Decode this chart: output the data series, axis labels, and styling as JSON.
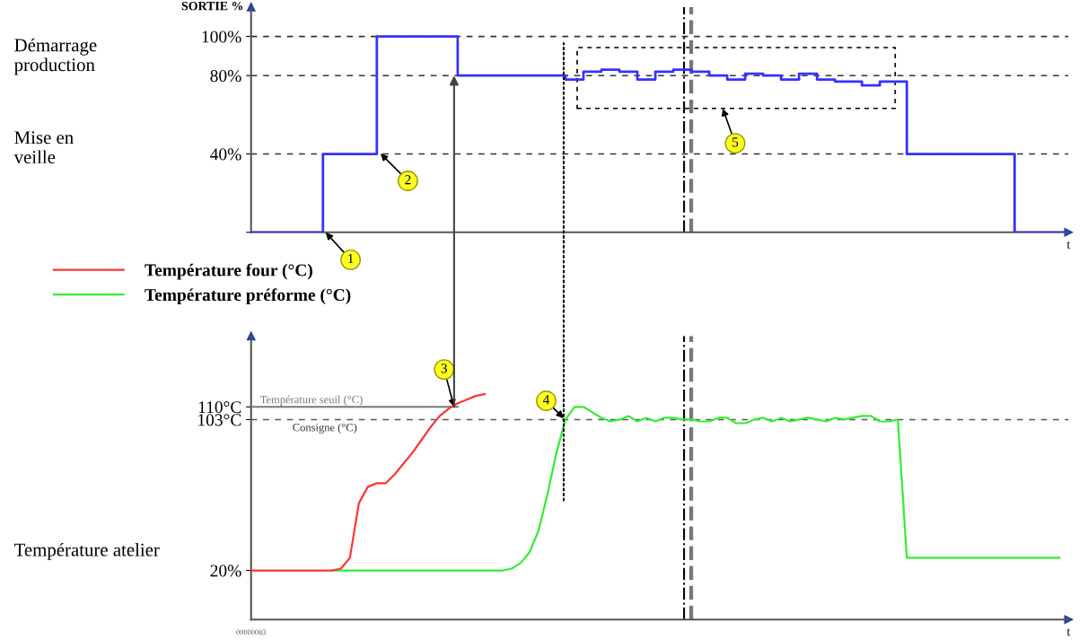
{
  "chart_data": [
    {
      "type": "step",
      "ylabel": "SORTIE %",
      "xlabel": "t",
      "categories": [
        null,
        null,
        null,
        null,
        null,
        null,
        null,
        null,
        null,
        null,
        null,
        null,
        null,
        null,
        null,
        null,
        null,
        null,
        null,
        null,
        null,
        null,
        null,
        null,
        null,
        null,
        null,
        null,
        null,
        null,
        null,
        null,
        null,
        null,
        null,
        null,
        null,
        null,
        null,
        null,
        null,
        null,
        null,
        null,
        null,
        null,
        null,
        null,
        null,
        null,
        null,
        null,
        null,
        null,
        null,
        null,
        null,
        null,
        null,
        null,
        null,
        null,
        null,
        null,
        null,
        null,
        null,
        null,
        null,
        null,
        null,
        null,
        null,
        null,
        null,
        null,
        null,
        null,
        null,
        null,
        null,
        null,
        null,
        null,
        null,
        null,
        null,
        null,
        null,
        null,
        null,
        null
      ],
      "series": [
        {
          "color": "#3333ff",
          "values": [
            0,
            0,
            0,
            0,
            0,
            0,
            0,
            0,
            40,
            40,
            40,
            40,
            40,
            40,
            100,
            100,
            100,
            100,
            100,
            100,
            100,
            100,
            100,
            80,
            80,
            80,
            80,
            80,
            80,
            80,
            80,
            80,
            80,
            80,
            80,
            78,
            78,
            82,
            82,
            83,
            83,
            82,
            82,
            78,
            78,
            82,
            82,
            83,
            83,
            82,
            82,
            80,
            80,
            78,
            78,
            81,
            81,
            80,
            80,
            78,
            78,
            81,
            81,
            78,
            78,
            77,
            77,
            77,
            75,
            75,
            77,
            77,
            77,
            40,
            40,
            40,
            40,
            40,
            40,
            40,
            40,
            40,
            40,
            40,
            40,
            0,
            0,
            0,
            0,
            0,
            0,
            0
          ]
        }
      ],
      "ylim": [
        0,
        115
      ],
      "yticks": [
        {
          "value": 0,
          "label": null
        },
        {
          "value": 40,
          "label": "40%"
        },
        {
          "value": 80,
          "label": "80%"
        },
        {
          "value": 100,
          "label": "100%"
        }
      ],
      "tick_labels": "y",
      "ref_lines": [
        {
          "axis": "y",
          "value": 100,
          "color": "#333333",
          "line_style": "dashed"
        },
        {
          "axis": "y",
          "value": 80,
          "color": "#333333",
          "line_style": "dashed"
        },
        {
          "axis": "y",
          "value": 40,
          "color": "#333333",
          "line_style": "dashed"
        }
      ],
      "annotations": [
        "Démarrage\nproduction",
        "Mise en\nveille",
        "1",
        "2",
        "5"
      ]
    },
    {
      "type": "line",
      "xlabel": "t",
      "categories": [
        null,
        null,
        null,
        null,
        null,
        null,
        null,
        null,
        null,
        null,
        null,
        null,
        null,
        null,
        null,
        null,
        null,
        null,
        null,
        null,
        null,
        null,
        null,
        null,
        null,
        null,
        null,
        null,
        null,
        null,
        null,
        null,
        null,
        null,
        null,
        null,
        null,
        null,
        null,
        null,
        null,
        null,
        null,
        null,
        null,
        null,
        null,
        null,
        null,
        null,
        null,
        null,
        null,
        null,
        null,
        null,
        null,
        null,
        null,
        null,
        null,
        null,
        null,
        null,
        null,
        null,
        null,
        null,
        null,
        null,
        null,
        null,
        null,
        null,
        null,
        null,
        null,
        null,
        null,
        null,
        null,
        null,
        null,
        null,
        null,
        null,
        null,
        null,
        null,
        null,
        null,
        null
      ],
      "series": [
        {
          "name": "Température four (°C)",
          "color": "#ff3333",
          "values": [
            20,
            20,
            20,
            20,
            20,
            20,
            20,
            20,
            20,
            20,
            21,
            27,
            57,
            66,
            68,
            68,
            73,
            79,
            85,
            92,
            99,
            105,
            109,
            112,
            114,
            116,
            117,
            null,
            null,
            null,
            null,
            null,
            null,
            null,
            null,
            null,
            null,
            null,
            null,
            null,
            null,
            null,
            null,
            null,
            null,
            null,
            null,
            null,
            null,
            null,
            null,
            null,
            null,
            null,
            null,
            null,
            null,
            null,
            null,
            null,
            null,
            null,
            null,
            null,
            null,
            null,
            null,
            null,
            null,
            null,
            null,
            null,
            null,
            null,
            null,
            null,
            null,
            null,
            null,
            null,
            null,
            null,
            null,
            null,
            null,
            null,
            null,
            null,
            null,
            null,
            null,
            null
          ]
        },
        {
          "name": "Température préforme (°C)",
          "color": "#33ee33",
          "values": [
            null,
            null,
            null,
            null,
            null,
            null,
            null,
            null,
            null,
            20,
            20,
            20,
            20,
            20,
            20,
            20,
            20,
            20,
            20,
            20,
            20,
            20,
            20,
            20,
            20,
            20,
            20,
            20,
            20,
            21,
            24,
            30,
            42,
            62,
            85,
            103,
            110,
            110,
            107,
            104,
            102,
            103,
            105,
            102,
            104,
            102,
            104,
            104,
            103,
            103,
            102,
            102,
            104,
            104,
            101,
            101,
            103,
            104,
            102,
            104,
            102,
            103,
            104,
            103,
            102,
            104,
            103,
            104,
            105,
            105,
            102,
            102,
            103,
            27,
            27,
            27,
            27,
            27,
            27,
            27,
            27,
            27,
            27,
            27,
            27,
            27,
            27,
            27,
            27,
            27,
            27,
            null
          ]
        },
        {
          "name": "Température seuil (°C)",
          "type": "step",
          "color": "#777777",
          "values": [
            110,
            110,
            110,
            110,
            110,
            110,
            110,
            110,
            110,
            110,
            110,
            110,
            110,
            110,
            110,
            110,
            110,
            110,
            110,
            110,
            110,
            110,
            110,
            110,
            null,
            null,
            null,
            null,
            null,
            null,
            null,
            null,
            null,
            null,
            null,
            null,
            null,
            null,
            null,
            null,
            null,
            null,
            null,
            null,
            null,
            null,
            null,
            null,
            null,
            null,
            null,
            null,
            null,
            null,
            null,
            null,
            null,
            null,
            null,
            null,
            null,
            null,
            null,
            null,
            null,
            null,
            null,
            null,
            null,
            null,
            null,
            null,
            null,
            null,
            null,
            null,
            null,
            null,
            null,
            null,
            null,
            null,
            null,
            null,
            null,
            null,
            null,
            null,
            null,
            null,
            null,
            null
          ]
        }
      ],
      "ylim": [
        -7,
        149
      ],
      "yticks": [
        {
          "value": 20,
          "label": "20%"
        },
        {
          "value": 103,
          "label": "103°C"
        },
        {
          "value": 110,
          "label": "110°C"
        }
      ],
      "tick_labels": "y",
      "legend": "top left",
      "ref_lines": [
        {
          "axis": "y",
          "value": 103,
          "label": "Consigne (°C)",
          "color": "#555555",
          "line_style": "dashed"
        }
      ],
      "annotations": [
        "Température atelier",
        "3",
        "4",
        "00000083"
      ]
    }
  ]
}
